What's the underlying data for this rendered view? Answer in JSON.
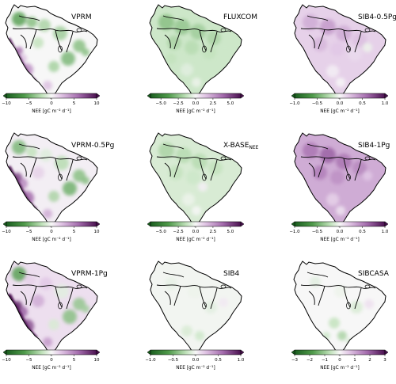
{
  "figure": {
    "colorbar_label": "NEE [gC m⁻² d⁻¹]",
    "colors": {
      "negative": "#1b5e20",
      "positive": "#4a1150",
      "neutral": "#f7f7f7",
      "coastline": "#000000",
      "background": "#ffffff"
    },
    "panels": [
      {
        "title": "VPRM",
        "ticks": [
          "−10",
          "−5",
          "0",
          "5",
          "10"
        ],
        "tick_values": [
          -10,
          -5,
          0,
          5,
          10
        ],
        "range": [
          -10,
          10
        ],
        "pattern": "vprm"
      },
      {
        "title": "FLUXCOM",
        "ticks": [
          "−5.0",
          "−2.5",
          "0.0",
          "2.5",
          "5.0"
        ],
        "tick_values": [
          -5,
          -2.5,
          0,
          2.5,
          5
        ],
        "range": [
          -6.5,
          6.5
        ],
        "pattern": "fluxcom"
      },
      {
        "title": "SIB4-0.5Pg",
        "ticks": [
          "−1.0",
          "−0.5",
          "0.0",
          "0.5",
          "1.0"
        ],
        "tick_values": [
          -1,
          -0.5,
          0,
          0.5,
          1
        ],
        "range": [
          -1,
          1
        ],
        "pattern": "sib_purple_light"
      },
      {
        "title": "VPRM-0.5Pg",
        "ticks": [
          "−10",
          "−5",
          "0",
          "5",
          "10"
        ],
        "tick_values": [
          -10,
          -5,
          0,
          5,
          10
        ],
        "range": [
          -10,
          10
        ],
        "pattern": "vprm_05"
      },
      {
        "title": "X-BASE",
        "title_sub": "NEE",
        "ticks": [
          "−5.0",
          "−2.5",
          "0.0",
          "2.5",
          "5.0"
        ],
        "tick_values": [
          -5,
          -2.5,
          0,
          2.5,
          5
        ],
        "range": [
          -6.5,
          6.5
        ],
        "pattern": "xbase"
      },
      {
        "title": "SIB4-1Pg",
        "ticks": [
          "−1.0",
          "−0.5",
          "0.0",
          "0.5",
          "1.0"
        ],
        "tick_values": [
          -1,
          -0.5,
          0,
          0.5,
          1
        ],
        "range": [
          -1,
          1
        ],
        "pattern": "sib_purple_strong"
      },
      {
        "title": "VPRM-1Pg",
        "ticks": [
          "−10",
          "−5",
          "0",
          "5",
          "10"
        ],
        "tick_values": [
          -10,
          -5,
          0,
          5,
          10
        ],
        "range": [
          -10,
          10
        ],
        "pattern": "vprm_1"
      },
      {
        "title": "SIB4",
        "ticks": [
          "−1.0",
          "−0.5",
          "0.0",
          "0.5",
          "1.0"
        ],
        "tick_values": [
          -1,
          -0.5,
          0,
          0.5,
          1
        ],
        "range": [
          -1,
          1
        ],
        "pattern": "sib4"
      },
      {
        "title": "SIBCASA",
        "ticks": [
          "−3",
          "−2",
          "−1",
          "0",
          "1",
          "2",
          "3"
        ],
        "tick_values": [
          -3,
          -2,
          -1,
          0,
          1,
          2,
          3
        ],
        "range": [
          -3,
          3
        ],
        "pattern": "sibcasa"
      }
    ]
  }
}
